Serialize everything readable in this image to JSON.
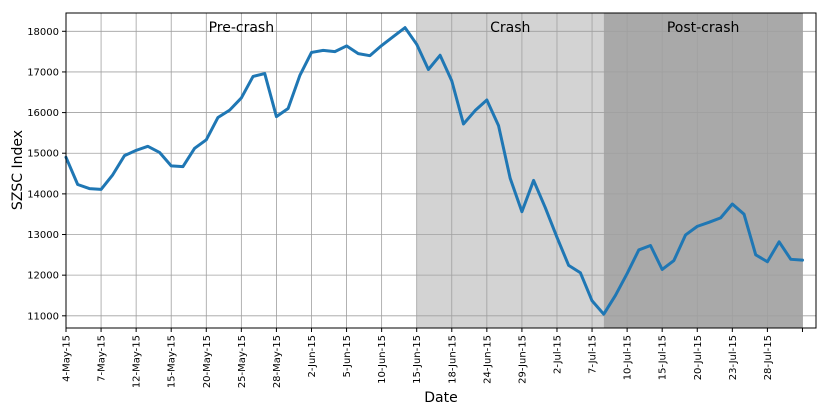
{
  "chart_data": {
    "type": "line",
    "xlabel": "Date",
    "ylabel": "SZSC Index",
    "ylim": [
      10700,
      18450
    ],
    "yticks": [
      11000,
      12000,
      13000,
      14000,
      15000,
      16000,
      17000,
      18000
    ],
    "grid": true,
    "x_tick_labels": [
      "4-May-15",
      "7-May-15",
      "12-May-15",
      "15-May-15",
      "20-May-15",
      "25-May-15",
      "28-May-15",
      "2-Jun-15",
      "5-Jun-15",
      "10-Jun-15",
      "15-Jun-15",
      "18-Jun-15",
      "24-Jun-15",
      "29-Jun-15",
      "2-Jul-15",
      "7-Jul-15",
      "10-Jul-15",
      "15-Jul-15",
      "20-Jul-15",
      "23-Jul-15",
      "28-Jul-15"
    ],
    "regions": [
      {
        "label": "Pre-crash",
        "start_index": 0,
        "end_index": 30,
        "color": "#ffffff"
      },
      {
        "label": "Crash",
        "start_index": 30,
        "end_index": 46,
        "color": "#d3d3d3"
      },
      {
        "label": "Post-crash",
        "start_index": 46,
        "end_index": 63,
        "color": "#a9a9a9"
      }
    ],
    "series": [
      {
        "color": "#1f77b4",
        "values": [
          14900,
          14230,
          14130,
          14110,
          14470,
          14940,
          15070,
          15170,
          15020,
          14690,
          14670,
          15120,
          15330,
          15880,
          16060,
          16360,
          16890,
          16960,
          15900,
          16100,
          16910,
          17480,
          17530,
          17500,
          17640,
          17450,
          17400,
          17650,
          17870,
          18090,
          17680,
          17060,
          17410,
          16780,
          15720,
          16050,
          16310,
          15680,
          14380,
          13560,
          14330,
          13660,
          12930,
          12240,
          12060,
          11370,
          11040,
          11500,
          12040,
          12620,
          12730,
          12140,
          12360,
          12990,
          13200,
          13300,
          13410,
          13750,
          13500,
          12500,
          12330,
          12820,
          12390,
          12370
        ]
      }
    ]
  }
}
